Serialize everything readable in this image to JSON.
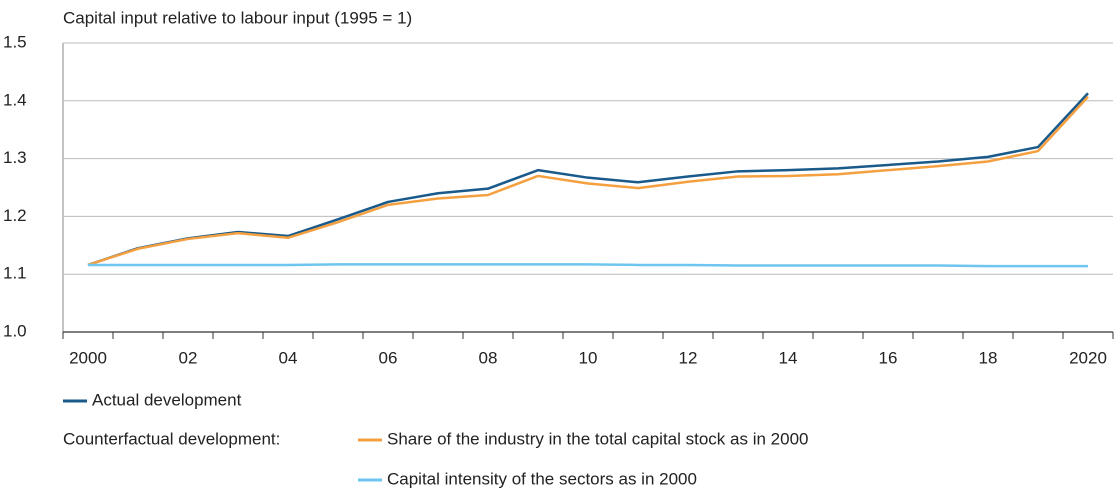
{
  "chart_data": {
    "type": "line",
    "y_label": "Capital input relative to labour input (1995 = 1)",
    "categories": [
      "2000",
      null,
      "02",
      null,
      "04",
      null,
      "06",
      null,
      "08",
      null,
      "10",
      null,
      "12",
      null,
      "14",
      null,
      "16",
      null,
      "18",
      null,
      "2020"
    ],
    "series": [
      {
        "name": "Actual development",
        "color": "#1a5a8a",
        "values": [
          1.116,
          1.145,
          1.162,
          1.173,
          1.166,
          1.195,
          1.225,
          1.24,
          1.248,
          1.28,
          1.267,
          1.259,
          1.269,
          1.278,
          1.28,
          1.283,
          1.289,
          1.295,
          1.303,
          1.32,
          1.413
        ]
      },
      {
        "name": "Share of the industry in the total capital stock as in 2000",
        "color": "#f5a040",
        "values": [
          1.116,
          1.144,
          1.161,
          1.171,
          1.163,
          1.19,
          1.22,
          1.231,
          1.237,
          1.27,
          1.257,
          1.249,
          1.26,
          1.269,
          1.27,
          1.273,
          1.28,
          1.287,
          1.295,
          1.313,
          1.407
        ]
      },
      {
        "name": "Capital intensity of the sectors as in 2000",
        "color": "#6ec6f0",
        "values": [
          1.116,
          1.116,
          1.116,
          1.116,
          1.116,
          1.117,
          1.117,
          1.117,
          1.117,
          1.117,
          1.117,
          1.116,
          1.116,
          1.115,
          1.115,
          1.115,
          1.115,
          1.115,
          1.114,
          1.114,
          1.114
        ]
      }
    ],
    "legend_group_label": "Counterfactual development:",
    "ylim": [
      1,
      1.5
    ],
    "yticks": [
      {
        "value": 1,
        "label": "1.0"
      },
      1.1,
      1.2,
      1.3,
      1.4,
      1.5
    ],
    "grid": true
  }
}
